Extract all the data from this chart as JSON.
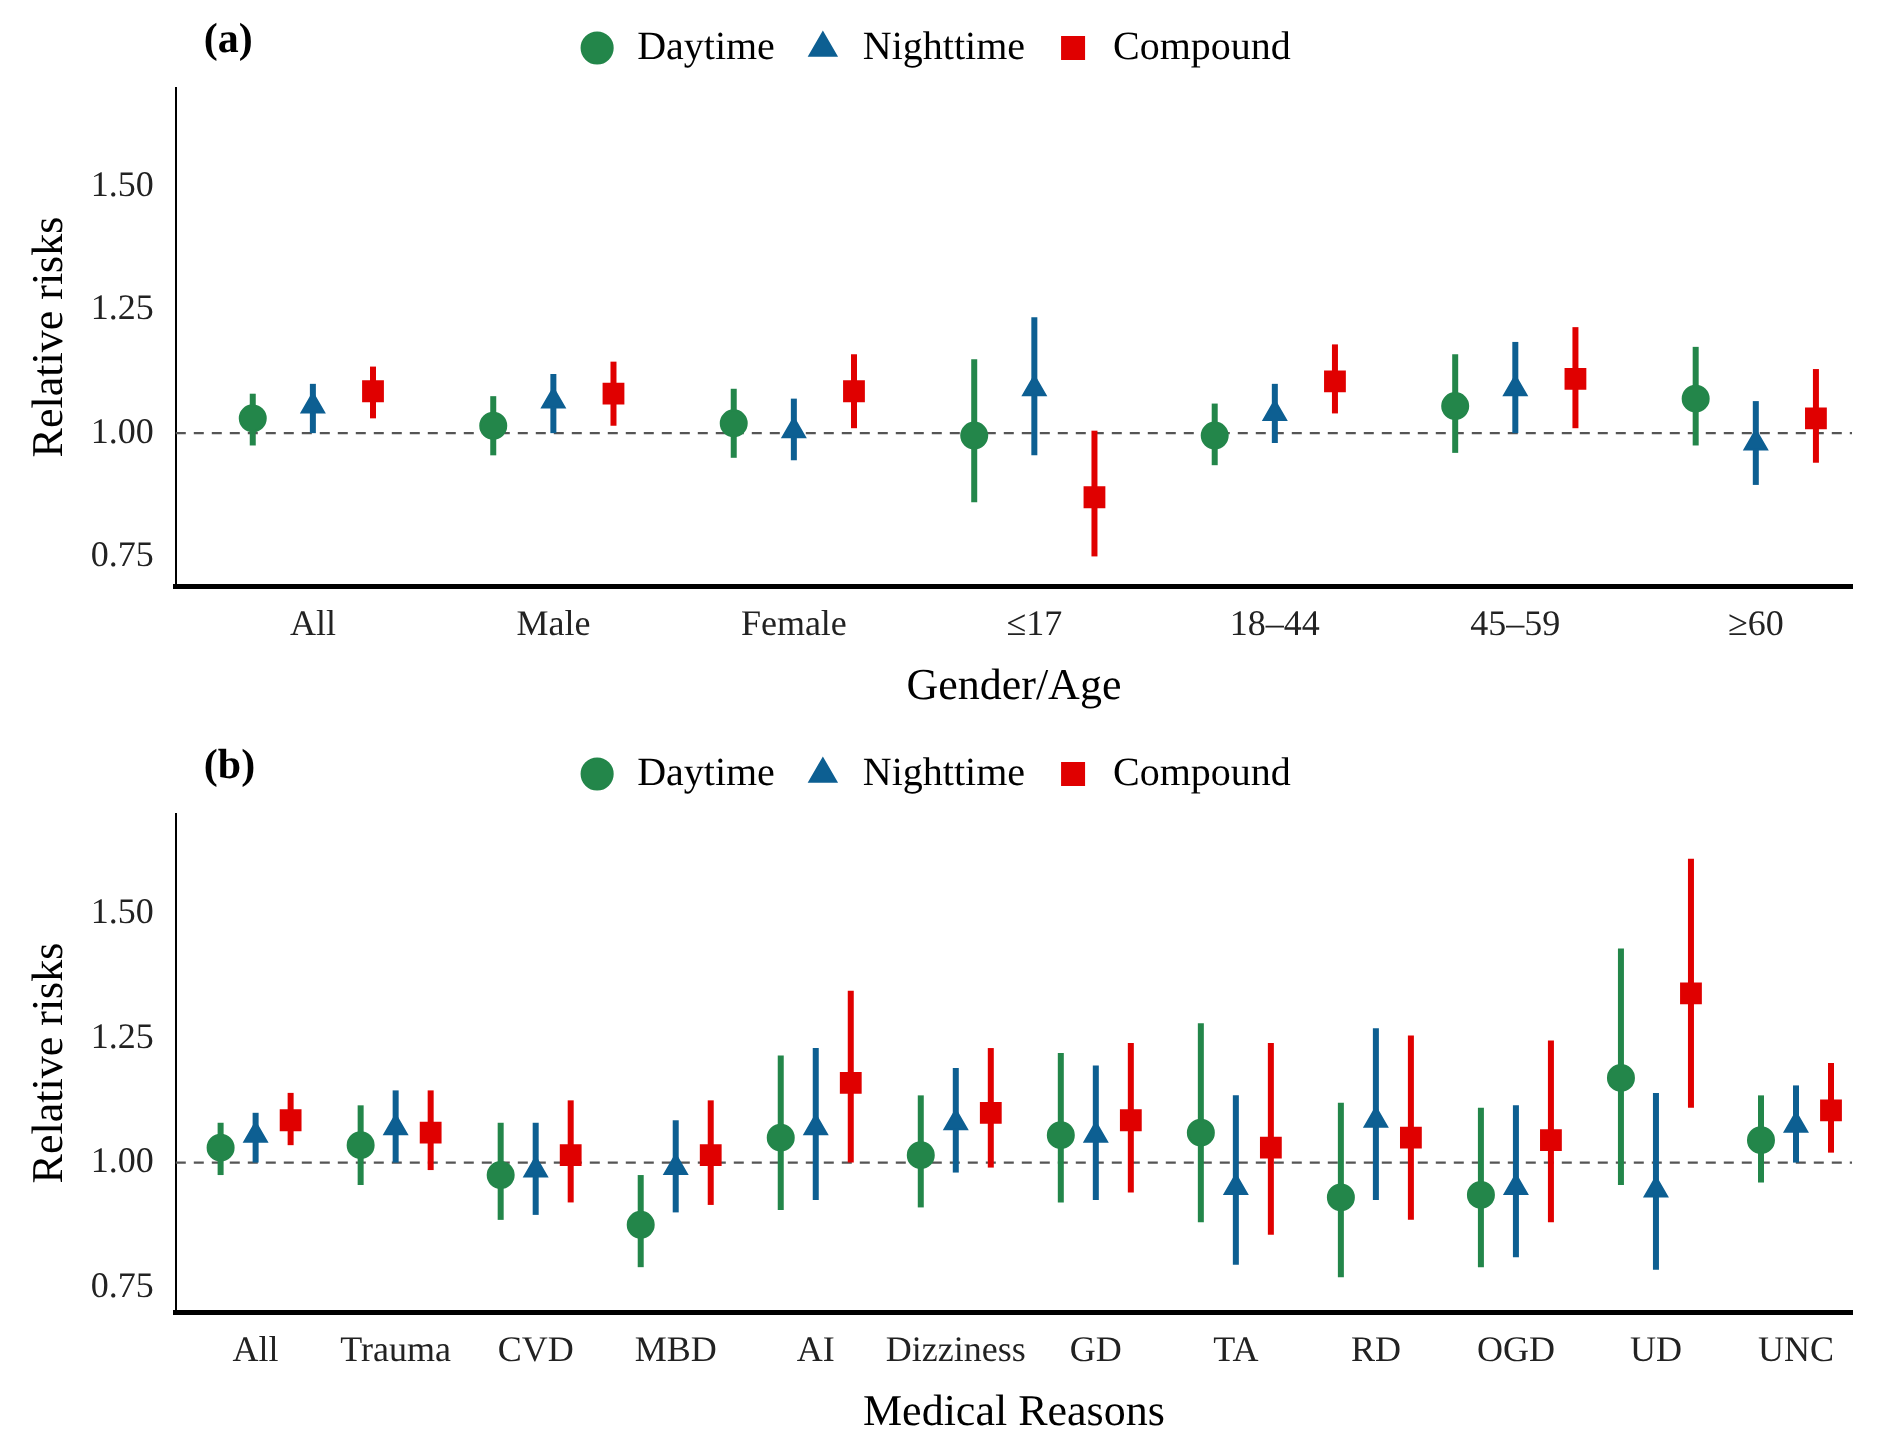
{
  "chart_data": [
    {
      "type": "scatter",
      "title": "(a)",
      "xlabel": "Gender/Age",
      "ylabel": "Relative risks",
      "categories": [
        "All",
        "Male",
        "Female",
        "≤17",
        "18–44",
        "45–59",
        "≥60"
      ],
      "ylim": [
        0.69,
        1.7
      ],
      "yticks": [
        {
          "value": 0.75,
          "label": "0.75"
        },
        {
          "value": 1,
          "label": "1.00"
        },
        {
          "value": 1.25,
          "label": "1.25"
        },
        {
          "value": 1.5,
          "label": "1.50"
        }
      ],
      "grid": false,
      "legend": "top",
      "ref_lines": [
        {
          "axis": "y",
          "value": 1,
          "line_style": "dashed",
          "color": "#555555"
        }
      ],
      "series": [
        {
          "name": "Daytime",
          "color": "#23864a",
          "marker": "circle",
          "values": [
            1.03,
            1.015,
            1.02,
            0.995,
            0.995,
            1.055,
            1.07
          ],
          "errors": [
            [
              0.975,
              1.08
            ],
            [
              0.955,
              1.075
            ],
            [
              0.95,
              1.09
            ],
            [
              0.86,
              1.15
            ],
            [
              0.935,
              1.06
            ],
            [
              0.96,
              1.16
            ],
            [
              0.975,
              1.175
            ]
          ]
        },
        {
          "name": "Nighttime",
          "color": "#0d5f92",
          "marker": "triangle",
          "values": [
            1.055,
            1.065,
            1.005,
            1.09,
            1.04,
            1.09,
            0.98
          ],
          "errors": [
            [
              1.0,
              1.1
            ],
            [
              1.0,
              1.12
            ],
            [
              0.945,
              1.07
            ],
            [
              0.955,
              1.235
            ],
            [
              0.98,
              1.1
            ],
            [
              1.0,
              1.185
            ],
            [
              0.895,
              1.065
            ]
          ]
        },
        {
          "name": "Compound",
          "color": "#e00000",
          "marker": "square",
          "values": [
            1.085,
            1.08,
            1.085,
            0.87,
            1.105,
            1.11,
            1.03
          ],
          "errors": [
            [
              1.03,
              1.135
            ],
            [
              1.015,
              1.145
            ],
            [
              1.01,
              1.16
            ],
            [
              0.75,
              1.005
            ],
            [
              1.04,
              1.18
            ],
            [
              1.01,
              1.215
            ],
            [
              0.94,
              1.13
            ]
          ]
        }
      ]
    },
    {
      "type": "scatter",
      "title": "(b)",
      "xlabel": "Medical Reasons",
      "ylabel": "Relative risks",
      "categories": [
        "All",
        "Trauma",
        "CVD",
        "MBD",
        "AI",
        "Dizziness",
        "GD",
        "TA",
        "RD",
        "OGD",
        "UD",
        "UNC"
      ],
      "ylim": [
        0.7,
        1.7
      ],
      "yticks": [
        {
          "value": 0.75,
          "label": "0.75"
        },
        {
          "value": 1,
          "label": "1.00"
        },
        {
          "value": 1.25,
          "label": "1.25"
        },
        {
          "value": 1.5,
          "label": "1.50"
        }
      ],
      "grid": false,
      "legend": "top",
      "ref_lines": [
        {
          "axis": "y",
          "value": 1,
          "line_style": "dashed",
          "color": "#555555"
        }
      ],
      "series": [
        {
          "name": "Daytime",
          "color": "#23864a",
          "marker": "circle",
          "values": [
            1.03,
            1.035,
            0.975,
            0.875,
            1.05,
            1.015,
            1.055,
            1.06,
            0.93,
            0.935,
            1.17,
            1.045
          ],
          "errors": [
            [
              0.975,
              1.08
            ],
            [
              0.955,
              1.115
            ],
            [
              0.885,
              1.08
            ],
            [
              0.79,
              0.975
            ],
            [
              0.905,
              1.215
            ],
            [
              0.91,
              1.135
            ],
            [
              0.92,
              1.22
            ],
            [
              0.88,
              1.28
            ],
            [
              0.77,
              1.12
            ],
            [
              0.79,
              1.11
            ],
            [
              0.955,
              1.43
            ],
            [
              0.96,
              1.135
            ]
          ]
        },
        {
          "name": "Nighttime",
          "color": "#0d5f92",
          "marker": "triangle",
          "values": [
            1.055,
            1.07,
            0.985,
            0.99,
            1.07,
            1.08,
            1.055,
            0.95,
            1.085,
            0.95,
            0.945,
            1.075
          ],
          "errors": [
            [
              1.0,
              1.1
            ],
            [
              1.0,
              1.145
            ],
            [
              0.895,
              1.08
            ],
            [
              0.9,
              1.085
            ],
            [
              0.925,
              1.23
            ],
            [
              0.98,
              1.19
            ],
            [
              0.925,
              1.195
            ],
            [
              0.795,
              1.135
            ],
            [
              0.925,
              1.27
            ],
            [
              0.81,
              1.115
            ],
            [
              0.785,
              1.14
            ],
            [
              1.0,
              1.155
            ]
          ]
        },
        {
          "name": "Compound",
          "color": "#e00000",
          "marker": "square",
          "values": [
            1.085,
            1.06,
            1.015,
            1.015,
            1.16,
            1.1,
            1.085,
            1.03,
            1.05,
            1.045,
            1.34,
            1.105
          ],
          "errors": [
            [
              1.035,
              1.14
            ],
            [
              0.985,
              1.145
            ],
            [
              0.92,
              1.125
            ],
            [
              0.915,
              1.125
            ],
            [
              1.0,
              1.345
            ],
            [
              0.99,
              1.23
            ],
            [
              0.94,
              1.24
            ],
            [
              0.855,
              1.24
            ],
            [
              0.885,
              1.255
            ],
            [
              0.88,
              1.245
            ],
            [
              1.11,
              1.61
            ],
            [
              1.02,
              1.2
            ]
          ]
        }
      ]
    }
  ]
}
